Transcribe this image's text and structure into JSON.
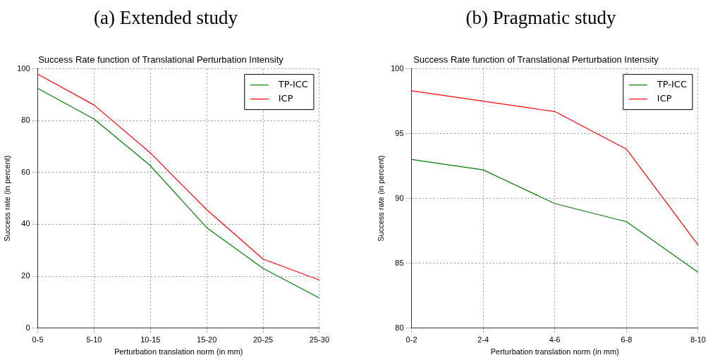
{
  "chart_data": [
    {
      "type": "line",
      "title": "Success Rate function of Translational Perturbation Intensity",
      "xlabel": "Perturbation translation norm (in mm)",
      "ylabel": "Success rate (in percent)",
      "annotations": [
        "(a) Extended study"
      ],
      "categories": [
        "0-5",
        "5-10",
        "10-15",
        "15-20",
        "20-25",
        "25-30"
      ],
      "series": [
        {
          "name": "TP-ICC",
          "color": "#008000",
          "values": [
            92.4,
            80.6,
            62.6,
            38.7,
            23.0,
            11.6
          ]
        },
        {
          "name": "ICP",
          "color": "#ff0000",
          "values": [
            97.9,
            86.0,
            67.5,
            45.6,
            26.6,
            18.5
          ]
        }
      ],
      "ylim": [
        0,
        100
      ],
      "yticks": [
        0,
        20,
        40,
        60,
        80,
        100
      ],
      "grid": true,
      "legend": "top right",
      "marker": "none"
    },
    {
      "type": "line",
      "title": "Success Rate function of Translational Perturbation Intensity",
      "xlabel": "Perturbation translation norm (in mm)",
      "ylabel": "Success rate (in percent)",
      "annotations": [
        "(b) Pragmatic study"
      ],
      "categories": [
        "0-2",
        "2-4",
        "4-6",
        "6-8",
        "8-10"
      ],
      "series": [
        {
          "name": "TP-ICC",
          "color": "#008000",
          "values": [
            93.0,
            92.2,
            89.6,
            88.2,
            84.3
          ]
        },
        {
          "name": "ICP",
          "color": "#ff0000",
          "values": [
            98.3,
            97.5,
            96.7,
            93.8,
            86.4
          ]
        }
      ],
      "ylim": [
        80,
        100
      ],
      "yticks": [
        80,
        85,
        90,
        95,
        100
      ],
      "grid": true,
      "legend": "top right",
      "marker": "none"
    }
  ]
}
